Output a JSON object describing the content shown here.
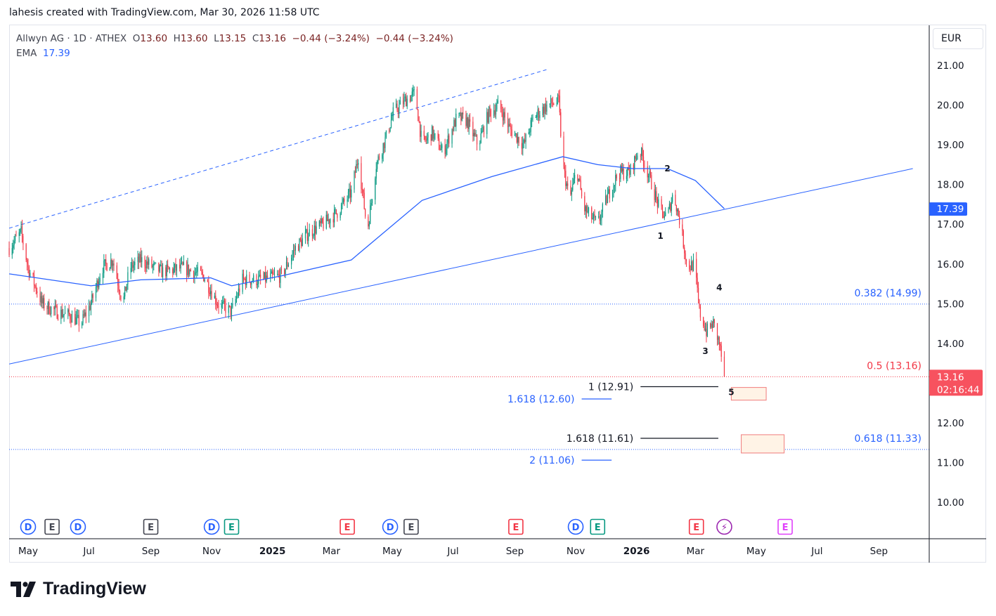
{
  "caption": "lahesis created with TradingView.com, Mar 30, 2026 11:58 UTC",
  "legend": {
    "symbol": "Allwyn AG · 1D · ATHEX",
    "open_label": "O",
    "open": "13.60",
    "high_label": "H",
    "high": "13.60",
    "low_label": "L",
    "low": "13.15",
    "close_label": "C",
    "close": "13.16",
    "change": "−0.44 (−3.24%)",
    "change2": "−0.44 (−3.24%)",
    "ema_label": "EMA",
    "ema_value": "17.39"
  },
  "currency": "EUR",
  "brand": "TradingView",
  "colors": {
    "up": "#089981",
    "down": "#f23645",
    "ema": "#2962ff",
    "trend": "#2962ff",
    "last": "#f7525f"
  },
  "chart_data": {
    "type": "candlestick",
    "title": "Allwyn AG · 1D · ATHEX",
    "ylim": [
      9.4,
      21.9
    ],
    "y_ticks": [
      "10.00",
      "11.00",
      "12.00",
      "13.00",
      "14.00",
      "15.00",
      "16.00",
      "17.00",
      "18.00",
      "19.00",
      "20.00",
      "21.00"
    ],
    "x_ticks": [
      {
        "label": "May",
        "date": "2024-05-01"
      },
      {
        "label": "Jul",
        "date": "2024-07-01"
      },
      {
        "label": "Sep",
        "date": "2024-09-01"
      },
      {
        "label": "Nov",
        "date": "2024-11-01"
      },
      {
        "label": "2025",
        "date": "2025-01-01",
        "bold": true
      },
      {
        "label": "Mar",
        "date": "2025-03-01"
      },
      {
        "label": "May",
        "date": "2025-05-01"
      },
      {
        "label": "Jul",
        "date": "2025-07-01"
      },
      {
        "label": "Sep",
        "date": "2025-09-01"
      },
      {
        "label": "Nov",
        "date": "2025-11-01"
      },
      {
        "label": "2026",
        "date": "2026-01-01",
        "bold": true
      },
      {
        "label": "Mar",
        "date": "2026-03-01"
      },
      {
        "label": "May",
        "date": "2026-05-01"
      },
      {
        "label": "Jul",
        "date": "2026-07-01"
      },
      {
        "label": "Sep",
        "date": "2026-09-01"
      }
    ],
    "close_path": [
      [
        "2024-04-12",
        16.4
      ],
      [
        "2024-04-24",
        16.8
      ],
      [
        "2024-05-01",
        15.9
      ],
      [
        "2024-05-15",
        15.0
      ],
      [
        "2024-05-29",
        14.8
      ],
      [
        "2024-06-12",
        14.7
      ],
      [
        "2024-06-23",
        14.5
      ],
      [
        "2024-07-03",
        15.0
      ],
      [
        "2024-07-14",
        15.9
      ],
      [
        "2024-07-25",
        16.1
      ],
      [
        "2024-08-04",
        15.0
      ],
      [
        "2024-08-11",
        15.9
      ],
      [
        "2024-08-22",
        16.1
      ],
      [
        "2024-09-12",
        15.8
      ],
      [
        "2024-10-03",
        15.9
      ],
      [
        "2024-10-24",
        15.7
      ],
      [
        "2024-11-07",
        15.0
      ],
      [
        "2024-11-21",
        14.8
      ],
      [
        "2024-12-02",
        15.6
      ],
      [
        "2024-12-20",
        15.6
      ],
      [
        "2025-01-10",
        15.7
      ],
      [
        "2025-01-24",
        16.4
      ],
      [
        "2025-02-07",
        16.8
      ],
      [
        "2025-02-21",
        17.0
      ],
      [
        "2025-03-07",
        17.3
      ],
      [
        "2025-03-21",
        17.8
      ],
      [
        "2025-03-28",
        18.7
      ],
      [
        "2025-04-06",
        16.8
      ],
      [
        "2025-04-15",
        18.5
      ],
      [
        "2025-04-25",
        19.2
      ],
      [
        "2025-05-02",
        19.8
      ],
      [
        "2025-05-13",
        20.1
      ],
      [
        "2025-05-24",
        20.3
      ],
      [
        "2025-05-31",
        19.0
      ],
      [
        "2025-06-10",
        19.3
      ],
      [
        "2025-06-21",
        18.8
      ],
      [
        "2025-07-05",
        19.7
      ],
      [
        "2025-07-15",
        19.6
      ],
      [
        "2025-07-26",
        19.0
      ],
      [
        "2025-08-06",
        19.8
      ],
      [
        "2025-08-16",
        20.0
      ],
      [
        "2025-08-27",
        19.4
      ],
      [
        "2025-09-10",
        19.0
      ],
      [
        "2025-09-20",
        19.7
      ],
      [
        "2025-10-04",
        20.0
      ],
      [
        "2025-10-15",
        20.1
      ],
      [
        "2025-10-19",
        18.5
      ],
      [
        "2025-10-26",
        17.6
      ],
      [
        "2025-11-02",
        18.4
      ],
      [
        "2025-11-09",
        17.4
      ],
      [
        "2025-11-23",
        17.0
      ],
      [
        "2025-12-03",
        17.7
      ],
      [
        "2025-12-14",
        18.3
      ],
      [
        "2025-12-25",
        18.3
      ],
      [
        "2026-01-04",
        18.9
      ],
      [
        "2026-01-15",
        18.1
      ],
      [
        "2026-01-25",
        17.3
      ],
      [
        "2026-02-01",
        17.2
      ],
      [
        "2026-02-07",
        17.8
      ],
      [
        "2026-02-14",
        17.0
      ],
      [
        "2026-02-21",
        15.9
      ],
      [
        "2026-02-28",
        16.0
      ],
      [
        "2026-03-05",
        14.8
      ],
      [
        "2026-03-12",
        14.3
      ],
      [
        "2026-03-19",
        14.5
      ],
      [
        "2026-03-25",
        14.0
      ],
      [
        "2026-03-30",
        13.16
      ]
    ],
    "ema_path": [
      [
        "2024-04-12",
        15.75
      ],
      [
        "2024-07-03",
        15.45
      ],
      [
        "2024-08-22",
        15.6
      ],
      [
        "2024-10-31",
        15.65
      ],
      [
        "2024-11-21",
        15.45
      ],
      [
        "2025-01-10",
        15.7
      ],
      [
        "2025-03-21",
        16.1
      ],
      [
        "2025-05-31",
        17.6
      ],
      [
        "2025-08-09",
        18.2
      ],
      [
        "2025-10-19",
        18.7
      ],
      [
        "2025-11-23",
        18.5
      ],
      [
        "2025-12-28",
        18.4
      ],
      [
        "2026-02-01",
        18.4
      ],
      [
        "2026-03-01",
        18.1
      ],
      [
        "2026-03-30",
        17.39
      ]
    ],
    "trendlines": [
      {
        "style": "dashed",
        "from": [
          "2024-04-12",
          16.9
        ],
        "to": [
          "2025-10-04",
          20.9
        ]
      },
      {
        "style": "solid",
        "from": [
          "2024-04-12",
          13.48
        ],
        "to": [
          "2026-10-05",
          18.4
        ]
      }
    ],
    "fib_retracement": [
      {
        "label": "0.382 (14.99)",
        "price": 14.99,
        "color": "#2962ff"
      },
      {
        "label": "0.5 (13.16)",
        "price": 13.16,
        "color": "#f23645"
      },
      {
        "label": "0.618 (11.33)",
        "price": 11.33,
        "color": "#2962ff"
      }
    ],
    "fib_extensions": [
      {
        "label": "1 (12.91)",
        "price": 12.91,
        "color": "#131722",
        "from": "2026-01-05",
        "to": "2026-03-24"
      },
      {
        "label": "1.618 (11.61)",
        "price": 11.61,
        "color": "#131722",
        "from": "2026-01-05",
        "to": "2026-03-24"
      },
      {
        "label": "1.618 (12.60)",
        "price": 12.6,
        "color": "#2962ff",
        "from": "2025-11-07",
        "to": "2025-12-07"
      },
      {
        "label": "2 (11.06)",
        "price": 11.06,
        "color": "#2962ff",
        "from": "2025-11-07",
        "to": "2025-12-07"
      }
    ],
    "wave_labels": [
      {
        "label": "1",
        "date": "2026-01-25",
        "price": 16.7
      },
      {
        "label": "2",
        "date": "2026-02-01",
        "price": 18.4
      },
      {
        "label": "3",
        "date": "2026-03-11",
        "price": 13.8
      },
      {
        "label": "4",
        "date": "2026-03-25",
        "price": 15.4
      },
      {
        "label": "5",
        "date": "2026-04-06",
        "price": 12.77,
        "boxed": true
      }
    ],
    "target_box": {
      "from": "2026-04-16",
      "to": "2026-05-29",
      "top": 11.7,
      "bottom": 11.24
    },
    "wave5_box": {
      "from": "2026-04-06",
      "to": "2026-05-11",
      "top": 12.89,
      "bottom": 12.57
    },
    "last_price": "13.16",
    "countdown": "02:16:44",
    "ema_badge": "17.39",
    "events": [
      {
        "type": "D",
        "date": "2024-05-01",
        "color": "#2962ff"
      },
      {
        "type": "E",
        "date": "2024-05-25",
        "color": "#434651"
      },
      {
        "type": "D",
        "date": "2024-06-20",
        "color": "#2962ff"
      },
      {
        "type": "E",
        "date": "2024-09-01",
        "color": "#434651"
      },
      {
        "type": "D",
        "date": "2024-11-01",
        "color": "#2962ff"
      },
      {
        "type": "E",
        "date": "2024-11-21",
        "color": "#089981"
      },
      {
        "type": "E",
        "date": "2025-03-17",
        "color": "#f23645"
      },
      {
        "type": "D",
        "date": "2025-04-29",
        "color": "#2962ff"
      },
      {
        "type": "E",
        "date": "2025-05-20",
        "color": "#434651"
      },
      {
        "type": "E",
        "date": "2025-09-02",
        "color": "#f23645"
      },
      {
        "type": "D",
        "date": "2025-11-01",
        "color": "#2962ff"
      },
      {
        "type": "E",
        "date": "2025-11-23",
        "color": "#089981"
      },
      {
        "type": "E",
        "date": "2026-03-02",
        "color": "#f23645"
      },
      {
        "type": "⚡",
        "date": "2026-03-30",
        "color": "#9c27b0"
      },
      {
        "type": "E",
        "date": "2026-05-30",
        "color": "#e040fb"
      }
    ]
  }
}
